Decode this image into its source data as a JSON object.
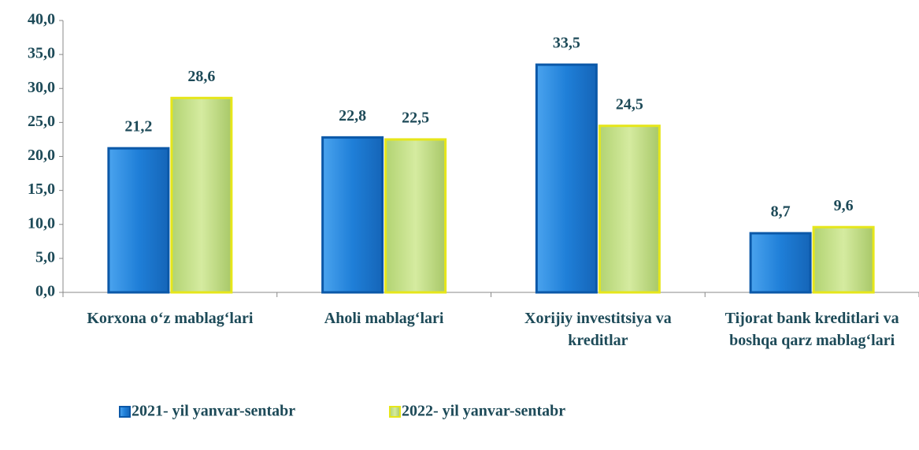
{
  "chart_data": {
    "type": "bar",
    "categories": [
      "Korxona o‘z mablag‘lari",
      "Aholi mablag‘lari",
      "Xorijiy investitsiya va kreditlar",
      "Tijorat bank kreditlari va boshqa qarz mablag‘lari"
    ],
    "series": [
      {
        "name": "2021- yil yanvar-sentabr",
        "color": "#1f7fd8",
        "values": [
          21.2,
          22.8,
          33.5,
          8.7
        ],
        "value_labels": [
          "21,2",
          "22,8",
          "33,5",
          "8,7"
        ]
      },
      {
        "name": "2022- yil yanvar-sentabr",
        "color": "#c4df8a",
        "values": [
          28.6,
          22.5,
          24.5,
          9.6
        ],
        "value_labels": [
          "28,6",
          "22,5",
          "24,5",
          "9,6"
        ]
      }
    ],
    "ylim": [
      0,
      40
    ],
    "yticks": [
      {
        "value": 0,
        "label": "0,0"
      },
      {
        "value": 5,
        "label": "5,0"
      },
      {
        "value": 10,
        "label": "10,0"
      },
      {
        "value": 15,
        "label": "15,0"
      },
      {
        "value": 20,
        "label": "20,0"
      },
      {
        "value": 25,
        "label": "25,0"
      },
      {
        "value": 30,
        "label": "30,0"
      },
      {
        "value": 35,
        "label": "35,0"
      },
      {
        "value": 40,
        "label": "40,0"
      }
    ]
  }
}
